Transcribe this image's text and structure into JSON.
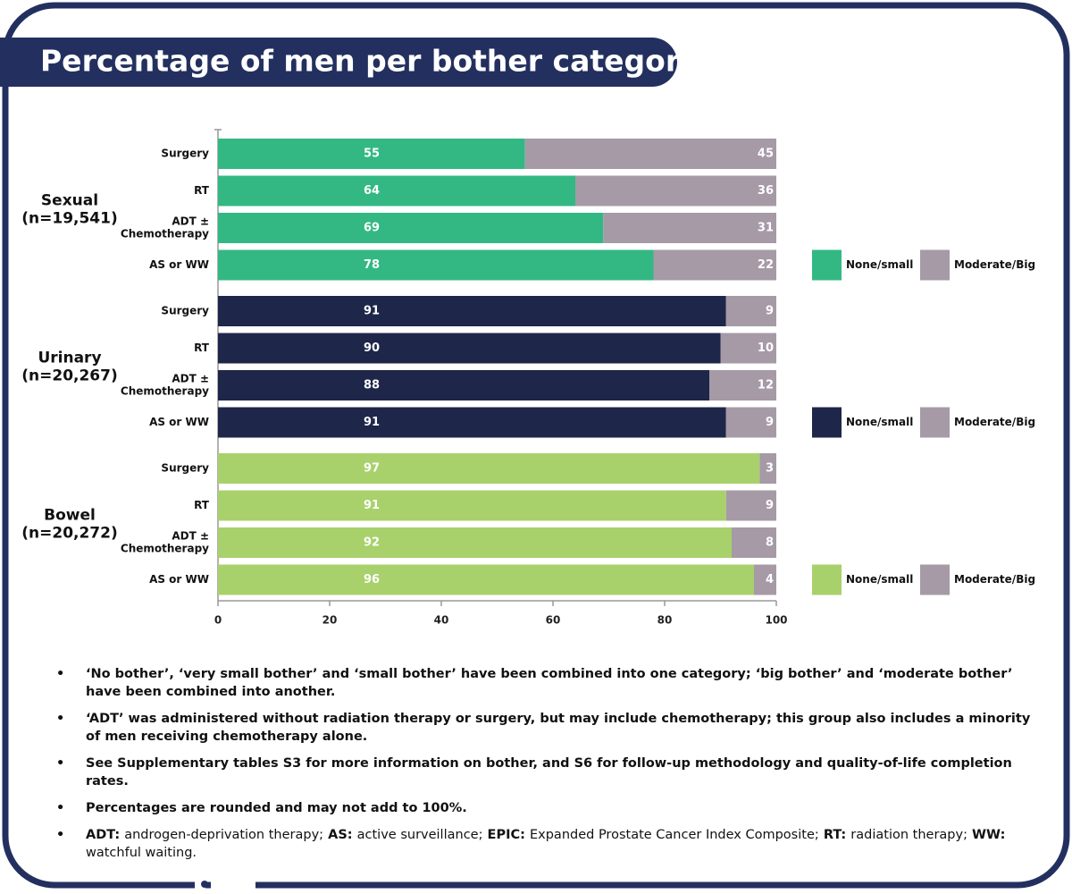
{
  "chart_data": {
    "type": "bar",
    "orientation": "horizontal",
    "stacked": true,
    "title": "Percentage of men per bother category",
    "xlim": [
      0,
      100
    ],
    "xticks": [
      0,
      20,
      40,
      60,
      80,
      100
    ],
    "panels": [
      {
        "label": "Sexual",
        "n": "(n=19,541)",
        "categories": [
          [
            "Surgery"
          ],
          [
            "RT"
          ],
          [
            "ADT ±",
            "Chemotherapy"
          ],
          [
            "AS or WW"
          ]
        ],
        "series": [
          {
            "name": "None/small",
            "color": "#33b884",
            "values": [
              55,
              64,
              69,
              78
            ]
          },
          {
            "name": "Moderate/Big",
            "color": "#a59aa6",
            "values": [
              45,
              36,
              31,
              22
            ]
          }
        ]
      },
      {
        "label": "Urinary",
        "n": "(n=20,267)",
        "categories": [
          [
            "Surgery"
          ],
          [
            "RT"
          ],
          [
            "ADT ±",
            "Chemotherapy"
          ],
          [
            "AS or WW"
          ]
        ],
        "series": [
          {
            "name": "None/small",
            "color": "#1e2649",
            "values": [
              91,
              90,
              88,
              91
            ]
          },
          {
            "name": "Moderate/Big",
            "color": "#a59aa6",
            "values": [
              9,
              10,
              12,
              9
            ]
          }
        ]
      },
      {
        "label": "Bowel",
        "n": "(n=20,272)",
        "categories": [
          [
            "Surgery"
          ],
          [
            "RT"
          ],
          [
            "ADT ±",
            "Chemotherapy"
          ],
          [
            "AS or WW"
          ]
        ],
        "series": [
          {
            "name": "None/small",
            "color": "#a8d16b",
            "values": [
              97,
              91,
              92,
              96
            ]
          },
          {
            "name": "Moderate/Big",
            "color": "#a59aa6",
            "values": [
              3,
              9,
              8,
              4
            ]
          }
        ]
      }
    ]
  },
  "notes": [
    "‘No bother’, ‘very small bother’ and ‘small bother’ have been combined into one category; ‘big bother’ and ‘moderate bother’ have been combined into another.",
    "‘ADT’ was administered without radiation therapy or surgery, but may include chemotherapy; this group also includes a minority of men receiving chemotherapy alone.",
    "See Supplementary tables S3 for more information on bother, and S6 for follow-up methodology and quality-of-life completion rates.",
    "Percentages are rounded and may not add to 100%."
  ],
  "abbreviations": [
    {
      "term": "ADT:",
      "definition": "androgen-deprivation therapy;"
    },
    {
      "term": "AS:",
      "definition": "active surveillance;"
    },
    {
      "term": "EPIC:",
      "definition": "Expanded Prostate Cancer Index Composite;"
    },
    {
      "term": "RT:",
      "definition": "radiation therapy;"
    },
    {
      "term": "WW:",
      "definition": "watchful waiting."
    }
  ]
}
